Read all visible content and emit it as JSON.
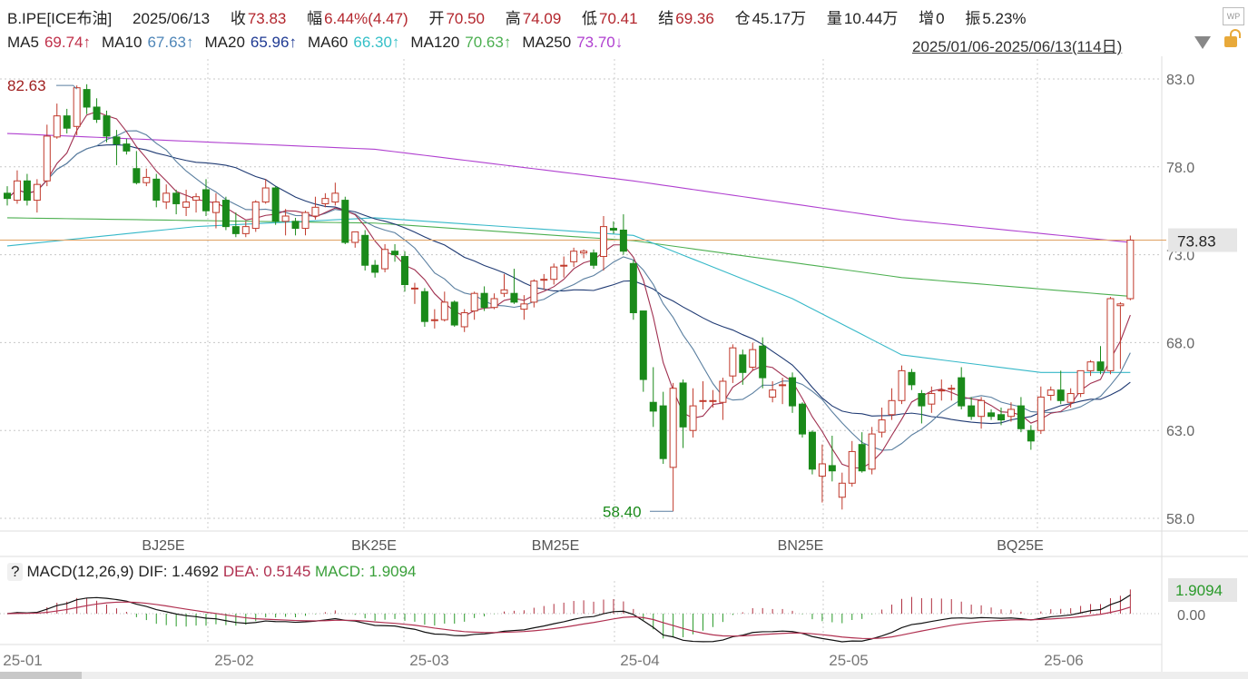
{
  "header": {
    "symbol": "B.IPE[ICE布油]",
    "date": "2025/06/13",
    "close_label": "收",
    "close": "73.83",
    "change_label": "幅",
    "change": "6.44%(4.47)",
    "open_label": "开",
    "open": "70.50",
    "high_label": "高",
    "high": "74.09",
    "low_label": "低",
    "low": "70.41",
    "settle_label": "结",
    "settle": "69.36",
    "oi_label": "仓",
    "oi": "45.17万",
    "volume_label": "量",
    "volume": "10.44万",
    "increase_label": "增",
    "increase": "0",
    "amplitude_label": "振",
    "amplitude": "5.23%",
    "range": "2025/01/06-2025/06/13(114日)",
    "wp_icon": "WP"
  },
  "ma_legend": [
    {
      "label": "MA5",
      "value": "69.74↑",
      "color": "#c0304a"
    },
    {
      "label": "MA10",
      "value": "67.63↑",
      "color": "#4f86b8"
    },
    {
      "label": "MA20",
      "value": "65.96↑",
      "color": "#1f3a93"
    },
    {
      "label": "MA60",
      "value": "66.30↑",
      "color": "#35c0c8"
    },
    {
      "label": "MA120",
      "value": "70.63↑",
      "color": "#4caf50"
    },
    {
      "label": "MA250",
      "value": "73.70↓",
      "color": "#b040d0"
    }
  ],
  "macd_header": {
    "help": "?",
    "title": "MACD(12,26,9)",
    "dif": "DIF: 1.4692",
    "dea": "DEA: 0.5145",
    "macd": "MACD: 1.9094"
  },
  "chart_data": {
    "type": "candlestick",
    "ylim": [
      57.5,
      84.0
    ],
    "y_ticks": [
      "83.0",
      "78.0",
      "73.0",
      "68.0",
      "63.0",
      "58.0"
    ],
    "current_price": "73.83",
    "max_label": "82.63",
    "min_label": "58.40",
    "contract_labels": [
      "BJ25E",
      "BK25E",
      "BM25E",
      "BN25E",
      "BQ25E"
    ],
    "month_labels": [
      "25-01",
      "25-02",
      "25-03",
      "25-04",
      "25-05",
      "25-06"
    ],
    "colors": {
      "up": "#c0392b",
      "down": "#1a8a1a",
      "price_line": "#e0a060"
    },
    "ohlc": [
      [
        76.5,
        76.9,
        75.8,
        76.2
      ],
      [
        76.1,
        77.8,
        75.9,
        77.2
      ],
      [
        77.2,
        77.6,
        75.8,
        76.1
      ],
      [
        76.1,
        77.3,
        75.4,
        77.0
      ],
      [
        77.2,
        80.4,
        76.9,
        79.75
      ],
      [
        79.7,
        81.6,
        79.6,
        80.9
      ],
      [
        80.9,
        81.3,
        79.9,
        80.2
      ],
      [
        80.3,
        82.63,
        79.8,
        82.5
      ],
      [
        82.4,
        82.7,
        81.0,
        81.4
      ],
      [
        81.4,
        81.9,
        80.5,
        80.7
      ],
      [
        80.9,
        81.2,
        79.4,
        79.75
      ],
      [
        79.7,
        80.1,
        78.1,
        79.3
      ],
      [
        79.3,
        79.6,
        78.7,
        78.9
      ],
      [
        77.9,
        78.9,
        77.0,
        77.1
      ],
      [
        77.1,
        77.9,
        76.9,
        77.4
      ],
      [
        77.3,
        77.6,
        75.7,
        76.1
      ],
      [
        76.0,
        77.0,
        75.6,
        76.5
      ],
      [
        76.5,
        76.7,
        75.3,
        75.9
      ],
      [
        75.7,
        76.7,
        75.2,
        76.0
      ],
      [
        76.1,
        76.5,
        75.4,
        76.3
      ],
      [
        76.7,
        77.3,
        75.2,
        75.5
      ],
      [
        75.4,
        76.5,
        74.5,
        76.0
      ],
      [
        76.1,
        76.3,
        74.4,
        74.6
      ],
      [
        74.6,
        75.4,
        74.0,
        74.2
      ],
      [
        74.2,
        74.9,
        74.0,
        74.6
      ],
      [
        74.5,
        76.1,
        74.3,
        76.0
      ],
      [
        76.0,
        77.3,
        75.9,
        76.8
      ],
      [
        76.8,
        76.9,
        74.7,
        74.9
      ],
      [
        74.9,
        75.6,
        74.1,
        75.2
      ],
      [
        74.9,
        75.1,
        74.1,
        74.5
      ],
      [
        74.5,
        75.5,
        74.1,
        75.4
      ],
      [
        75.2,
        76.3,
        75.0,
        75.7
      ],
      [
        75.9,
        76.5,
        75.7,
        76.2
      ],
      [
        76.0,
        77.1,
        75.8,
        76.5
      ],
      [
        76.1,
        76.3,
        73.6,
        73.7
      ],
      [
        73.7,
        74.3,
        73.4,
        74.3
      ],
      [
        74.1,
        74.4,
        72.1,
        72.4
      ],
      [
        72.4,
        72.7,
        71.7,
        72.0
      ],
      [
        72.2,
        73.6,
        72.0,
        73.3
      ],
      [
        73.2,
        73.6,
        72.6,
        73.0
      ],
      [
        72.9,
        73.2,
        70.9,
        71.3
      ],
      [
        71.1,
        71.4,
        70.2,
        71.1
      ],
      [
        70.9,
        71.1,
        68.9,
        69.2
      ],
      [
        69.3,
        69.9,
        68.8,
        69.3
      ],
      [
        69.3,
        70.9,
        69.2,
        70.3
      ],
      [
        70.3,
        70.4,
        68.9,
        69.0
      ],
      [
        68.9,
        69.9,
        68.6,
        69.7
      ],
      [
        69.8,
        70.9,
        69.3,
        70.8
      ],
      [
        70.8,
        71.2,
        69.8,
        70.0
      ],
      [
        70.0,
        70.8,
        69.9,
        70.5
      ],
      [
        70.8,
        71.9,
        70.6,
        71.0
      ],
      [
        70.8,
        72.2,
        70.2,
        70.3
      ],
      [
        69.9,
        70.7,
        69.3,
        70.2
      ],
      [
        70.3,
        71.6,
        70.0,
        71.5
      ],
      [
        71.6,
        71.9,
        71.0,
        71.6
      ],
      [
        71.6,
        72.5,
        71.3,
        72.3
      ],
      [
        72.4,
        72.9,
        71.7,
        72.4
      ],
      [
        72.6,
        73.4,
        72.3,
        73.2
      ],
      [
        73.1,
        73.3,
        72.8,
        73.2
      ],
      [
        73.1,
        73.3,
        72.2,
        72.4
      ],
      [
        72.9,
        75.2,
        72.1,
        74.6
      ],
      [
        74.5,
        74.9,
        74.2,
        74.4
      ],
      [
        74.4,
        75.3,
        73.0,
        73.2
      ],
      [
        72.5,
        72.7,
        69.3,
        69.7
      ],
      [
        69.8,
        69.8,
        65.2,
        65.9
      ],
      [
        64.6,
        66.6,
        63.2,
        64.1
      ],
      [
        64.4,
        65.2,
        61.1,
        61.4
      ],
      [
        60.9,
        65.7,
        58.4,
        65.4
      ],
      [
        65.7,
        65.9,
        62.0,
        63.2
      ],
      [
        63.0,
        65.4,
        62.6,
        64.4
      ],
      [
        64.7,
        65.8,
        64.2,
        64.7
      ],
      [
        64.7,
        65.3,
        64.3,
        64.7
      ],
      [
        64.6,
        66.0,
        63.6,
        65.8
      ],
      [
        66.1,
        67.9,
        65.7,
        67.7
      ],
      [
        67.3,
        67.6,
        65.6,
        66.3
      ],
      [
        66.6,
        68.0,
        66.4,
        67.6
      ],
      [
        67.8,
        68.3,
        65.4,
        66.0
      ],
      [
        64.9,
        65.8,
        64.6,
        65.3
      ],
      [
        65.6,
        66.0,
        64.5,
        65.6
      ],
      [
        66.0,
        66.3,
        64.0,
        64.4
      ],
      [
        64.5,
        64.6,
        62.6,
        62.8
      ],
      [
        62.9,
        63.0,
        60.5,
        60.8
      ],
      [
        60.4,
        62.2,
        58.9,
        61.1
      ],
      [
        61.0,
        62.7,
        60.1,
        60.7
      ],
      [
        59.2,
        60.6,
        58.5,
        60.0
      ],
      [
        60.0,
        62.4,
        59.8,
        61.8
      ],
      [
        62.2,
        62.9,
        60.6,
        60.7
      ],
      [
        60.8,
        63.2,
        60.5,
        62.8
      ],
      [
        62.9,
        64.3,
        62.6,
        63.6
      ],
      [
        63.9,
        65.4,
        63.6,
        64.7
      ],
      [
        64.7,
        66.7,
        64.5,
        66.4
      ],
      [
        66.3,
        66.5,
        65.3,
        65.6
      ],
      [
        65.1,
        65.3,
        63.4,
        64.4
      ],
      [
        64.5,
        65.5,
        64.0,
        65.1
      ],
      [
        65.3,
        65.9,
        64.7,
        65.3
      ],
      [
        65.4,
        65.6,
        64.7,
        65.4
      ],
      [
        66.0,
        66.6,
        64.2,
        64.4
      ],
      [
        64.4,
        64.9,
        63.6,
        63.8
      ],
      [
        63.8,
        64.9,
        63.1,
        64.7
      ],
      [
        64.0,
        64.2,
        63.6,
        63.8
      ],
      [
        63.9,
        64.3,
        63.3,
        63.6
      ],
      [
        63.8,
        64.6,
        63.5,
        64.2
      ],
      [
        64.4,
        64.9,
        62.9,
        63.1
      ],
      [
        63.0,
        63.3,
        61.9,
        62.4
      ],
      [
        63.0,
        65.5,
        62.8,
        64.9
      ],
      [
        65.0,
        65.5,
        64.7,
        65.3
      ],
      [
        65.3,
        66.4,
        64.5,
        64.7
      ],
      [
        64.6,
        65.4,
        64.3,
        65.1
      ],
      [
        65.1,
        66.4,
        64.9,
        66.4
      ],
      [
        66.4,
        67.0,
        66.1,
        66.9
      ],
      [
        66.9,
        67.8,
        66.2,
        66.4
      ],
      [
        66.4,
        70.6,
        66.2,
        70.5
      ],
      [
        70.1,
        70.3,
        66.5,
        70.2
      ],
      [
        70.5,
        74.09,
        70.41,
        73.83
      ]
    ],
    "ma_long": {
      "MA60": {
        "at": [
          1,
          20,
          38,
          64,
          80,
          91,
          105,
          114
        ],
        "values": [
          73.5,
          74.6,
          75.1,
          74.1,
          70.5,
          67.3,
          66.3,
          66.3
        ]
      },
      "MA120": {
        "at": [
          1,
          38,
          64,
          91,
          114
        ],
        "values": [
          75.1,
          74.8,
          73.8,
          71.7,
          70.63
        ]
      },
      "MA250": {
        "at": [
          1,
          38,
          64,
          91,
          114
        ],
        "values": [
          79.9,
          79.0,
          77.2,
          75.0,
          73.7
        ]
      }
    },
    "macd": {
      "zero_tick": "0.00",
      "last": "1.9094",
      "colors": {
        "dif": "#111111",
        "dea": "#b03050",
        "up": "#b03040",
        "down": "#2a9a2a"
      }
    }
  }
}
